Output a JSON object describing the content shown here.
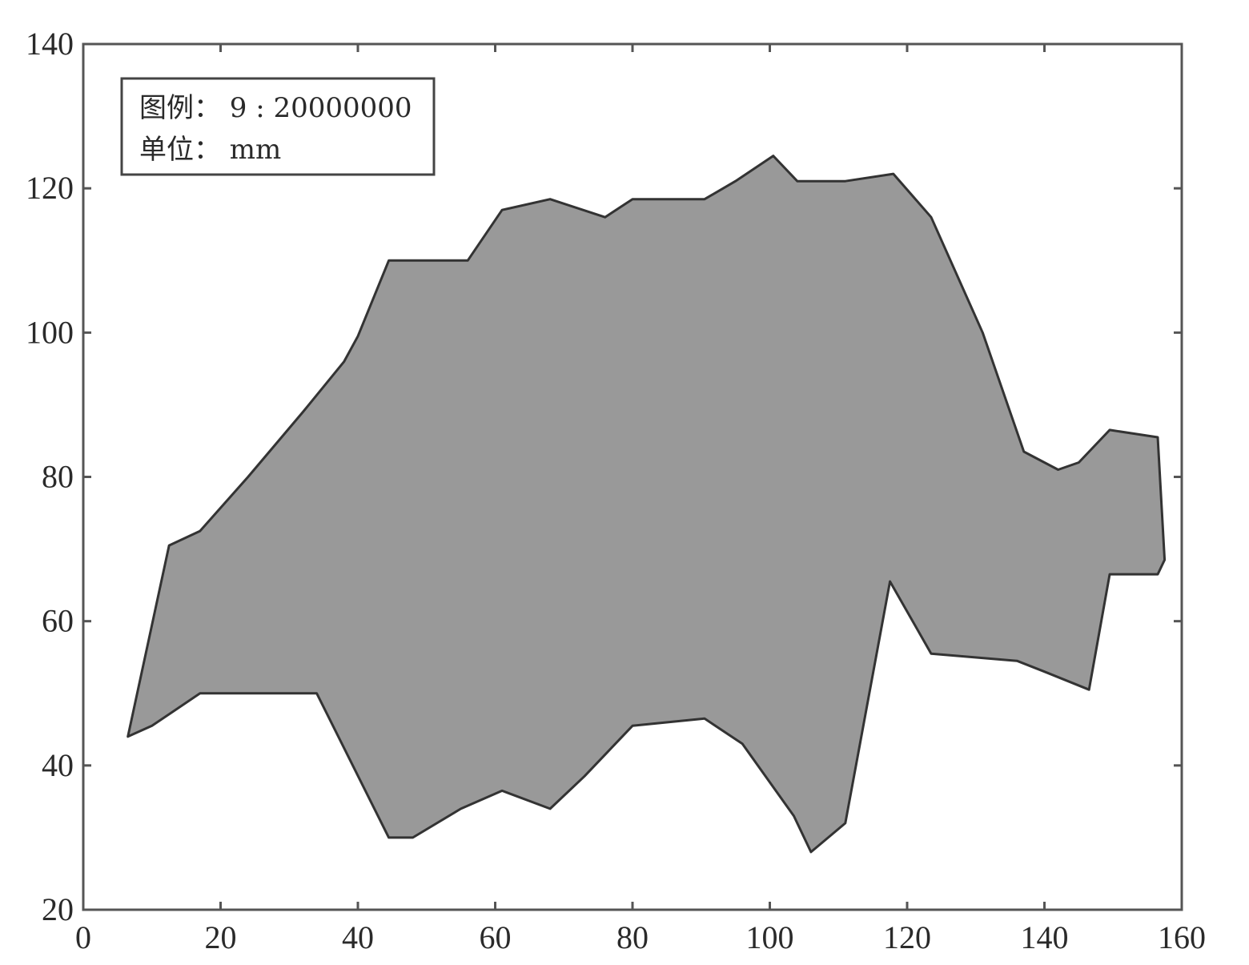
{
  "chart_data": {
    "type": "area",
    "xlim": [
      0,
      160
    ],
    "ylim": [
      20,
      140
    ],
    "xticks": [
      0,
      20,
      40,
      60,
      80,
      100,
      120,
      140,
      160
    ],
    "yticks": [
      20,
      40,
      60,
      80,
      100,
      120,
      140
    ],
    "xtick_labels": [
      "0",
      "20",
      "40",
      "60",
      "80",
      "100",
      "120",
      "140",
      "160"
    ],
    "ytick_labels": [
      "20",
      "40",
      "60",
      "80",
      "100",
      "120",
      "140"
    ],
    "grid": false,
    "fill_color": "#999999",
    "edge_color": "#333333",
    "legend": {
      "placement": "top-left",
      "line1": "图例：  9 : 20000000",
      "line2": "单位：  mm"
    },
    "polygon": [
      [
        6.5,
        44
      ],
      [
        12.5,
        70.5
      ],
      [
        17,
        72.5
      ],
      [
        24,
        80
      ],
      [
        32,
        89
      ],
      [
        38,
        96
      ],
      [
        40,
        99.5
      ],
      [
        44.5,
        110
      ],
      [
        56,
        110
      ],
      [
        61,
        117
      ],
      [
        68,
        118.5
      ],
      [
        76,
        116
      ],
      [
        80,
        118.5
      ],
      [
        90.5,
        118.5
      ],
      [
        95,
        121
      ],
      [
        100.5,
        124.5
      ],
      [
        104,
        121
      ],
      [
        111,
        121
      ],
      [
        118,
        122
      ],
      [
        123.5,
        116
      ],
      [
        131,
        100
      ],
      [
        137,
        83.5
      ],
      [
        142,
        81
      ],
      [
        145,
        82
      ],
      [
        149.5,
        86.5
      ],
      [
        156.5,
        85.5
      ],
      [
        157.5,
        68.5
      ],
      [
        156.5,
        66.5
      ],
      [
        149.5,
        66.5
      ],
      [
        146.5,
        50.5
      ],
      [
        140,
        53
      ],
      [
        136,
        54.5
      ],
      [
        123.5,
        55.5
      ],
      [
        117.5,
        65.5
      ],
      [
        111,
        32
      ],
      [
        106,
        28
      ],
      [
        103.5,
        33
      ],
      [
        96,
        43
      ],
      [
        90.5,
        46.5
      ],
      [
        80,
        45.5
      ],
      [
        73,
        38.5
      ],
      [
        68,
        34
      ],
      [
        61,
        36.5
      ],
      [
        55,
        34
      ],
      [
        48,
        30
      ],
      [
        44.5,
        30
      ],
      [
        34,
        50
      ],
      [
        17,
        50
      ],
      [
        10,
        45.5
      ]
    ]
  }
}
